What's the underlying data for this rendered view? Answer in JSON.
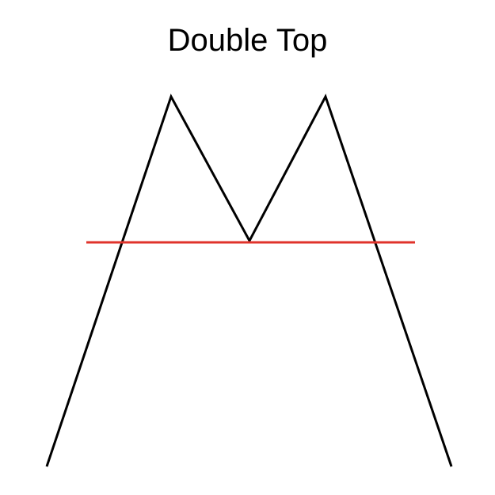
{
  "title": "Double Top",
  "colors": {
    "price_line": "#000000",
    "neckline": "#e0332b",
    "background": "#ffffff"
  }
}
